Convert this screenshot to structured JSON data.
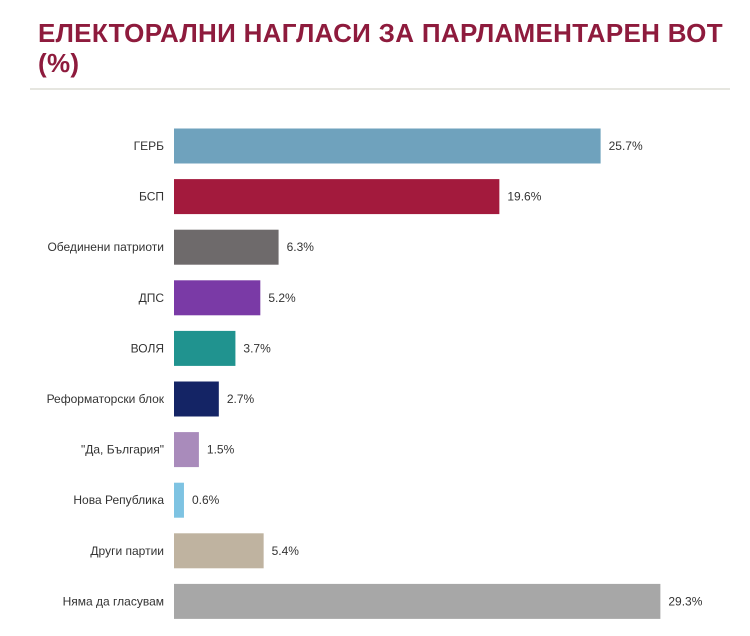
{
  "chart_data": {
    "type": "bar",
    "orientation": "horizontal",
    "title": "ЕЛЕКТОРАЛНИ НАГЛАСИ ЗА ПАРЛАМЕНТАРЕН ВОТ (%)",
    "categories": [
      "ГЕРБ",
      "БСП",
      "Обединени патриоти",
      "ДПС",
      "ВОЛЯ",
      "Реформаторски блок",
      "\"Да, България\"",
      "Нова Република",
      "Други партии",
      "Няма да гласувам"
    ],
    "values": [
      25.7,
      19.6,
      6.3,
      5.2,
      3.7,
      2.7,
      1.5,
      0.6,
      5.4,
      29.3
    ],
    "value_labels": [
      "25.7%",
      "19.6%",
      "6.3%",
      "5.2%",
      "3.7%",
      "2.7%",
      "1.5%",
      "0.6%",
      "5.4%",
      "29.3%"
    ],
    "colors": [
      "#6fa2bd",
      "#a31a3d",
      "#6e6a6b",
      "#7a3aa6",
      "#20938f",
      "#142465",
      "#a98bbb",
      "#7ec3e2",
      "#bfb3a0",
      "#a7a7a7"
    ],
    "xlim": [
      0,
      30
    ],
    "grid": false,
    "legend": "none"
  }
}
